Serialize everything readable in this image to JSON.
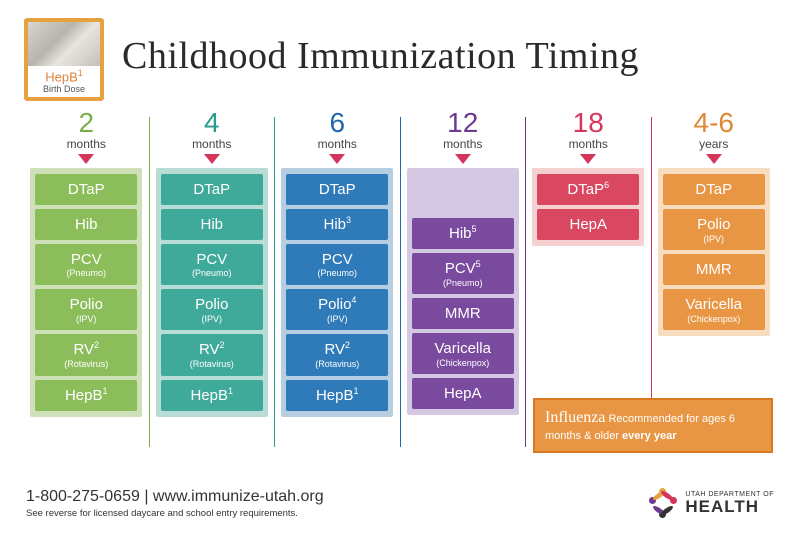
{
  "title": "Childhood Immunization Timing",
  "birth_badge": {
    "name": "HepB",
    "sup": "1",
    "sub": "Birth Dose",
    "border_color": "#e5a23e"
  },
  "columns": [
    {
      "age": "2",
      "unit": "months",
      "age_color": "#7dae4c",
      "bg_color": "#cde0b8",
      "box_color": "#8bbd5a",
      "divider_color": "#e5a23e",
      "vaccines": [
        {
          "name": "DTaP"
        },
        {
          "name": "Hib"
        },
        {
          "name": "PCV",
          "sub": "(Pneumo)"
        },
        {
          "name": "Polio",
          "sub": "(IPV)"
        },
        {
          "name": "RV",
          "sup": "2",
          "sub": "(Rotavirus)"
        },
        {
          "name": "HepB",
          "sup": "1"
        }
      ]
    },
    {
      "age": "4",
      "unit": "months",
      "age_color": "#2a9b8e",
      "bg_color": "#b8ddd6",
      "box_color": "#3fa99a",
      "divider_color": "#7dae4c",
      "vaccines": [
        {
          "name": "DTaP"
        },
        {
          "name": "Hib"
        },
        {
          "name": "PCV",
          "sub": "(Pneumo)"
        },
        {
          "name": "Polio",
          "sub": "(IPV)"
        },
        {
          "name": "RV",
          "sup": "2",
          "sub": "(Rotavirus)"
        },
        {
          "name": "HepB",
          "sup": "1"
        }
      ]
    },
    {
      "age": "6",
      "unit": "months",
      "age_color": "#2068a8",
      "bg_color": "#b5cee2",
      "box_color": "#2f7ab8",
      "divider_color": "#2a9b8e",
      "vaccines": [
        {
          "name": "DTaP"
        },
        {
          "name": "Hib",
          "sup": "3"
        },
        {
          "name": "PCV",
          "sub": "(Pneumo)"
        },
        {
          "name": "Polio",
          "sup": "4",
          "sub": "(IPV)"
        },
        {
          "name": "RV",
          "sup": "2",
          "sub": "(Rotavirus)"
        },
        {
          "name": "HepB",
          "sup": "1"
        }
      ]
    },
    {
      "age": "12",
      "unit": "months",
      "age_color": "#6b3b8f",
      "bg_color": "#d4c8e2",
      "box_color": "#7a4a9e",
      "divider_color": "#2068a8",
      "spacer": true,
      "vaccines": [
        {
          "name": "Hib",
          "sup": "5"
        },
        {
          "name": "PCV",
          "sup": "5",
          "sub": "(Pneumo)"
        },
        {
          "name": "MMR"
        },
        {
          "name": "Varicella",
          "sub": "(Chickenpox)"
        },
        {
          "name": "HepA"
        }
      ]
    },
    {
      "age": "18",
      "unit": "months",
      "age_color": "#d4365a",
      "bg_color": "#f5d0d0",
      "box_color": "#d94860",
      "divider_color": "#6b3b8f",
      "vaccines": [
        {
          "name": "DTaP",
          "sup": "6"
        },
        {
          "name": "HepA"
        }
      ]
    },
    {
      "age": "4-6",
      "unit": "years",
      "age_color": "#e08834",
      "bg_color": "#f8dcc0",
      "box_color": "#e89544",
      "divider_color": "#d4365a",
      "vaccines": [
        {
          "name": "DTaP"
        },
        {
          "name": "Polio",
          "sub": "(IPV)"
        },
        {
          "name": "MMR"
        },
        {
          "name": "Varicella",
          "sub": "(Chickenpox)"
        }
      ]
    }
  ],
  "influenza": {
    "title": "Influenza",
    "text": " Recommended for ages 6 months & older ",
    "bold": "every year",
    "bg_color": "#e89544",
    "border_color": "#d97820"
  },
  "footer": {
    "phone": "1-800-275-0659",
    "sep": " | ",
    "url": "www.immunize-utah.org",
    "note": "See reverse for licensed daycare and school entry requirements.",
    "logo_top": "UTAH DEPARTMENT OF",
    "logo_main": "HEALTH"
  }
}
